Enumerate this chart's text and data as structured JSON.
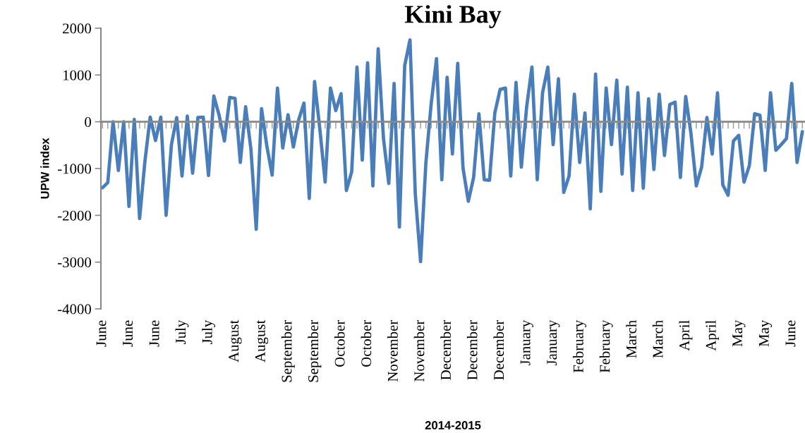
{
  "chart_data": {
    "type": "line",
    "title": "Kini Bay",
    "xlabel": "2014-2015",
    "ylabel": "UPW index",
    "categories": [
      "June",
      null,
      null,
      null,
      null,
      "June",
      null,
      null,
      null,
      null,
      "June",
      null,
      null,
      null,
      null,
      "July",
      null,
      null,
      null,
      null,
      "July",
      null,
      null,
      null,
      null,
      "August",
      null,
      null,
      null,
      null,
      "August",
      null,
      null,
      null,
      null,
      "September",
      null,
      null,
      null,
      null,
      "September",
      null,
      null,
      null,
      null,
      "October",
      null,
      null,
      null,
      null,
      "October",
      null,
      null,
      null,
      null,
      "November",
      null,
      null,
      null,
      null,
      "November",
      null,
      null,
      null,
      null,
      "December",
      null,
      null,
      null,
      null,
      "December",
      null,
      null,
      null,
      null,
      "December",
      null,
      null,
      null,
      null,
      "January",
      null,
      null,
      null,
      null,
      "January",
      null,
      null,
      null,
      null,
      "February",
      null,
      null,
      null,
      null,
      "February",
      null,
      null,
      null,
      null,
      "March",
      null,
      null,
      null,
      null,
      "March",
      null,
      null,
      null,
      null,
      "April",
      null,
      null,
      null,
      null,
      "April",
      null,
      null,
      null,
      null,
      "May",
      null,
      null,
      null,
      null,
      "May",
      null,
      null,
      null,
      null,
      "June",
      null,
      null
    ],
    "series": [
      {
        "color": "#4a7ebb",
        "values": [
          -1410,
          -1300,
          0,
          -1040,
          0,
          -1810,
          50,
          -2070,
          -850,
          100,
          -400,
          100,
          -2000,
          -490,
          90,
          -1160,
          120,
          -1100,
          90,
          100,
          -1150,
          550,
          140,
          -410,
          520,
          500,
          -870,
          320,
          -590,
          -2300,
          280,
          -520,
          -1140,
          720,
          -560,
          150,
          -540,
          40,
          400,
          -1640,
          860,
          -160,
          -1290,
          720,
          240,
          600,
          -1470,
          -1070,
          1170,
          -820,
          1260,
          -1370,
          1560,
          -360,
          -1320,
          820,
          -2250,
          1200,
          1750,
          -1550,
          -2990,
          -870,
          390,
          1350,
          -1240,
          950,
          -690,
          1250,
          -990,
          -1700,
          -1190,
          170,
          -1240,
          -1250,
          190,
          690,
          720,
          -1160,
          840,
          -970,
          320,
          1170,
          -1240,
          620,
          1170,
          -490,
          920,
          -1510,
          -1160,
          590,
          -870,
          190,
          -1860,
          1020,
          -1490,
          720,
          -490,
          890,
          -1120,
          740,
          -1470,
          620,
          -1420,
          490,
          -1020,
          590,
          -720,
          370,
          420,
          -1190,
          540,
          -260,
          -1370,
          -970,
          90,
          -690,
          620,
          -1350,
          -1570,
          -410,
          -290,
          -1290,
          -940,
          170,
          140,
          -1040,
          620,
          -610,
          -490,
          -360,
          820,
          -870,
          -210
        ]
      }
    ],
    "ylim": [
      -4000,
      2000
    ],
    "yticks": [
      -4000,
      -3000,
      -2000,
      -1000,
      0,
      1000,
      2000
    ]
  }
}
